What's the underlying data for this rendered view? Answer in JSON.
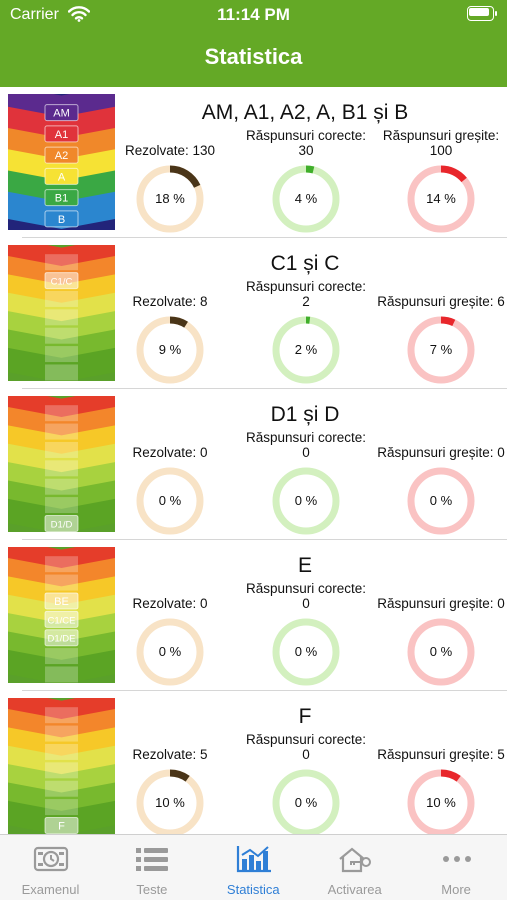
{
  "status_bar": {
    "carrier": "Carrier",
    "time": "11:14 PM"
  },
  "header": {
    "title": "Statistica"
  },
  "categories": [
    {
      "title": "AM, A1, A2, A, B1 și B",
      "thumb": "rainbow",
      "thumb_labels": [
        "AM",
        "A1",
        "A2",
        "A",
        "B1",
        "B"
      ],
      "solved_label": "Rezolvate: 130",
      "correct_label": "Răspunsuri corecte: 30",
      "wrong_label": "Răspunsuri greșite: 100",
      "solved_pct": "18 %",
      "correct_pct": "4 %",
      "wrong_pct": "14 %",
      "solved_value": 18,
      "correct_value": 4,
      "wrong_value": 14
    },
    {
      "title": "C1 și C",
      "thumb": "green",
      "thumb_labels": [
        "C1/C"
      ],
      "solved_label": "Rezolvate: 8",
      "correct_label": "Răspunsuri corecte: 2",
      "wrong_label": "Răspunsuri greșite: 6",
      "solved_pct": "9 %",
      "correct_pct": "2 %",
      "wrong_pct": "7 %",
      "solved_value": 9,
      "correct_value": 2,
      "wrong_value": 7
    },
    {
      "title": "D1 și D",
      "thumb": "green",
      "thumb_labels": [
        "D1/D"
      ],
      "solved_label": "Rezolvate: 0",
      "correct_label": "Răspunsuri corecte: 0",
      "wrong_label": "Răspunsuri greșite: 0",
      "solved_pct": "0 %",
      "correct_pct": "0 %",
      "wrong_pct": "0 %",
      "solved_value": 0,
      "correct_value": 0,
      "wrong_value": 0
    },
    {
      "title": "E",
      "thumb": "green",
      "thumb_labels": [
        "BE",
        "C1/CE",
        "D1/DE"
      ],
      "solved_label": "Rezolvate: 0",
      "correct_label": "Răspunsuri corecte: 0",
      "wrong_label": "Răspunsuri greșite: 0",
      "solved_pct": "0 %",
      "correct_pct": "0 %",
      "wrong_pct": "0 %",
      "solved_value": 0,
      "correct_value": 0,
      "wrong_value": 0
    },
    {
      "title": "F",
      "thumb": "green",
      "thumb_labels": [
        "F"
      ],
      "solved_label": "Rezolvate: 5",
      "correct_label": "Răspunsuri corecte: 0",
      "wrong_label": "Răspunsuri greșite: 5",
      "solved_pct": "10 %",
      "correct_pct": "0 %",
      "wrong_pct": "10 %",
      "solved_value": 10,
      "correct_value": 0,
      "wrong_value": 10
    }
  ],
  "ring_colors": {
    "solved": {
      "track": "#f8e3c6",
      "fill": "#4a3518"
    },
    "correct": {
      "track": "#d3f0bf",
      "fill": "#3fae2a"
    },
    "wrong": {
      "track": "#fac3c3",
      "fill": "#e8262b"
    }
  },
  "tabs": [
    {
      "label": "Examenul",
      "icon": "exam-clock-icon",
      "active": false
    },
    {
      "label": "Teste",
      "icon": "list-icon",
      "active": false
    },
    {
      "label": "Statistica",
      "icon": "bar-chart-icon",
      "active": true
    },
    {
      "label": "Activarea",
      "icon": "house-key-icon",
      "active": false
    },
    {
      "label": "More",
      "icon": "more-dots-icon",
      "active": false
    }
  ]
}
